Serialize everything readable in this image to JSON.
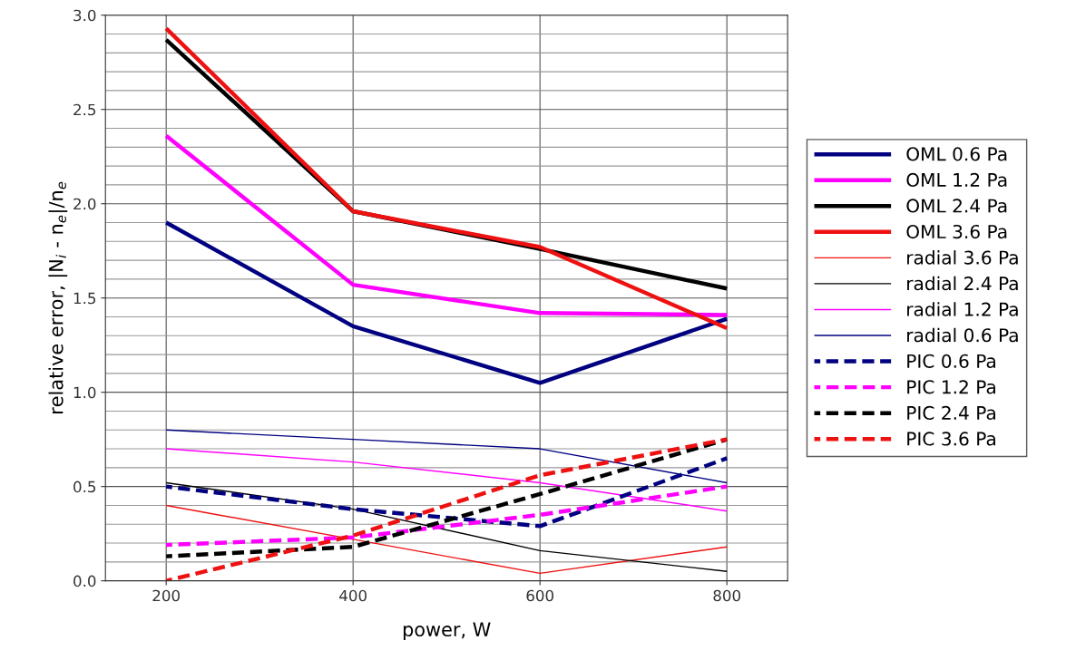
{
  "chart_data": {
    "type": "line",
    "xlabel": "power, W",
    "ylabel": "relative error, |N$_{i}$ - n$_{e}$|/n$_{e}$",
    "x": [
      200,
      400,
      600,
      800
    ],
    "xlim": [
      135,
      865
    ],
    "xticks": [
      200,
      400,
      600,
      800
    ],
    "ylim": [
      0,
      3.0
    ],
    "yticks": [
      {
        "value": 0,
        "label": "0.0"
      },
      {
        "value": 0.1,
        "label": null
      },
      {
        "value": 0.2,
        "label": null
      },
      {
        "value": 0.3,
        "label": null
      },
      {
        "value": 0.4,
        "label": null
      },
      {
        "value": 0.5,
        "label": "0.5"
      },
      {
        "value": 0.6,
        "label": null
      },
      {
        "value": 0.7,
        "label": null
      },
      {
        "value": 0.8,
        "label": null
      },
      {
        "value": 0.9,
        "label": null
      },
      {
        "value": 1.0,
        "label": "1.0"
      },
      {
        "value": 1.1,
        "label": null
      },
      {
        "value": 1.2,
        "label": null
      },
      {
        "value": 1.3,
        "label": null
      },
      {
        "value": 1.4,
        "label": null
      },
      {
        "value": 1.5,
        "label": "1.5"
      },
      {
        "value": 1.6,
        "label": null
      },
      {
        "value": 1.7,
        "label": null
      },
      {
        "value": 1.8,
        "label": null
      },
      {
        "value": 1.9,
        "label": null
      },
      {
        "value": 2.0,
        "label": "2.0"
      },
      {
        "value": 2.1,
        "label": null
      },
      {
        "value": 2.2,
        "label": null
      },
      {
        "value": 2.3,
        "label": null
      },
      {
        "value": 2.4,
        "label": null
      },
      {
        "value": 2.5,
        "label": "2.5"
      },
      {
        "value": 2.6,
        "label": null
      },
      {
        "value": 2.7,
        "label": null
      },
      {
        "value": 2.8,
        "label": null
      },
      {
        "value": 2.9,
        "label": null
      },
      {
        "value": 3.0,
        "label": "3.0"
      }
    ],
    "grid": true,
    "legend": "right",
    "marker": "none",
    "series": [
      {
        "name": "OML 0.6 Pa",
        "color": "#000080",
        "values": [
          1.9,
          1.35,
          1.05,
          1.39
        ],
        "line_style": "solid"
      },
      {
        "name": "OML 1.2 Pa",
        "color": "#ff00ff",
        "values": [
          2.36,
          1.57,
          1.42,
          1.41
        ],
        "line_style": "solid"
      },
      {
        "name": "OML 2.4 Pa",
        "color": "#000000",
        "values": [
          2.87,
          1.96,
          1.76,
          1.55
        ],
        "line_style": "solid"
      },
      {
        "name": "OML 3.6 Pa",
        "color": "#ee1111",
        "values": [
          2.93,
          1.96,
          1.77,
          1.34
        ],
        "line_style": "solid"
      },
      {
        "name": "radial 3.6 Pa",
        "color": "#ee1111",
        "values": [
          0.4,
          0.22,
          0.04,
          0.18
        ],
        "line_style": "solid"
      },
      {
        "name": "radial 2.4 Pa",
        "color": "#000000",
        "values": [
          0.52,
          0.38,
          0.16,
          0.05
        ],
        "line_style": "solid"
      },
      {
        "name": "radial 1.2 Pa",
        "color": "#ff00ff",
        "values": [
          0.7,
          0.63,
          0.52,
          0.37
        ],
        "line_style": "solid"
      },
      {
        "name": "radial 0.6 Pa",
        "color": "#000080",
        "values": [
          0.8,
          0.75,
          0.7,
          0.52
        ],
        "line_style": "solid"
      },
      {
        "name": "PIC 0.6 Pa",
        "color": "#000080",
        "values": [
          0.5,
          0.38,
          0.29,
          0.65
        ],
        "line_style": "dashed"
      },
      {
        "name": "PIC 1.2 Pa",
        "color": "#ff00ff",
        "values": [
          0.19,
          0.23,
          0.35,
          0.5
        ],
        "line_style": "dashed"
      },
      {
        "name": "PIC 2.4 Pa",
        "color": "#000000",
        "values": [
          0.13,
          0.18,
          0.46,
          0.75
        ],
        "line_style": "dashed"
      },
      {
        "name": "PIC 3.6 Pa",
        "color": "#ee1111",
        "values": [
          0.0,
          0.24,
          0.56,
          0.75
        ],
        "line_style": "dashed"
      }
    ]
  }
}
